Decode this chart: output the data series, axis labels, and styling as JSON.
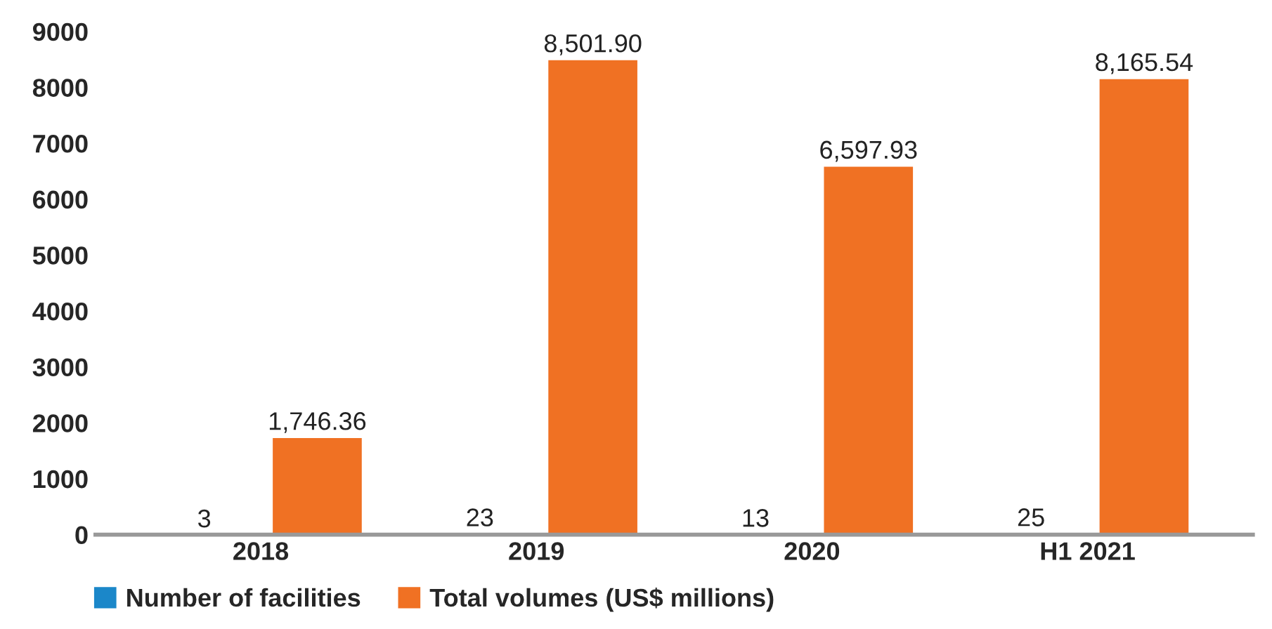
{
  "chart_data": {
    "type": "bar",
    "categories": [
      "2018",
      "2019",
      "2020",
      "H1 2021"
    ],
    "series": [
      {
        "name": "Number of facilities",
        "color": "#1b87c9",
        "values": [
          3,
          23,
          13,
          25
        ],
        "value_labels": [
          "3",
          "23",
          "13",
          "25"
        ]
      },
      {
        "name": "Total volumes (US$ millions)",
        "color": "#f07123",
        "values": [
          1746.36,
          8501.9,
          6597.93,
          8165.54
        ],
        "value_labels": [
          "1,746.36",
          "8,501.90",
          "6,597.93",
          "8,165.54"
        ]
      }
    ],
    "ylim": [
      0,
      9000
    ],
    "yticks": [
      0,
      1000,
      2000,
      3000,
      4000,
      5000,
      6000,
      7000,
      8000,
      9000
    ],
    "grid": false,
    "legend": "bottom left"
  }
}
